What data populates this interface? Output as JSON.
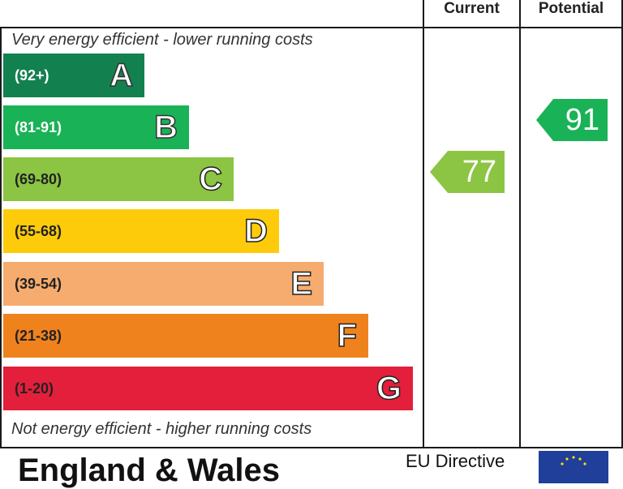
{
  "header": {
    "current_label": "Current",
    "potential_label": "Potential"
  },
  "captions": {
    "top": "Very energy efficient - lower running costs",
    "bottom": "Not energy efficient - higher running costs"
  },
  "chart_data": {
    "type": "bar",
    "title": "",
    "categories": [
      "A",
      "B",
      "C",
      "D",
      "E",
      "F",
      "G"
    ],
    "bands": [
      {
        "letter": "A",
        "range": "(92+)",
        "color": "#138050",
        "text_color": "#ffffff"
      },
      {
        "letter": "B",
        "range": "(81-91)",
        "color": "#1ab257",
        "text_color": "#ffffff"
      },
      {
        "letter": "C",
        "range": "(69-80)",
        "color": "#8cc443",
        "text_color": "#222222"
      },
      {
        "letter": "D",
        "range": "(55-68)",
        "color": "#fecb0b",
        "text_color": "#222222"
      },
      {
        "letter": "E",
        "range": "(39-54)",
        "color": "#f6ac6e",
        "text_color": "#222222"
      },
      {
        "letter": "F",
        "range": "(21-38)",
        "color": "#f0821e",
        "text_color": "#222222"
      },
      {
        "letter": "G",
        "range": "(1-20)",
        "color": "#e41f3b",
        "text_color": "#222222"
      }
    ],
    "current": {
      "value": 77,
      "band": "C",
      "color": "#8cc443"
    },
    "potential": {
      "value": 91,
      "band": "B",
      "color": "#1ab257"
    }
  },
  "footer": {
    "country": "England & Wales",
    "directive": "EU Directive"
  }
}
